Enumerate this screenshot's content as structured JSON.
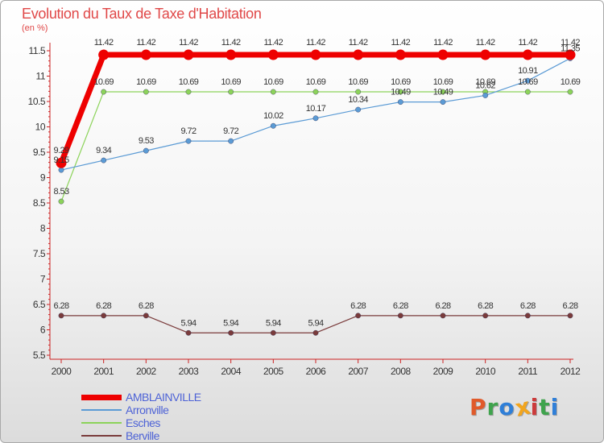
{
  "chart_data": {
    "type": "line",
    "title": "Evolution du Taux de Taxe d'Habitation",
    "subtitle": "(en %)",
    "xlabel": "",
    "ylabel": "",
    "x": [
      "2000",
      "2001",
      "2002",
      "2003",
      "2004",
      "2005",
      "2006",
      "2007",
      "2008",
      "2009",
      "2010",
      "2011",
      "2012"
    ],
    "ylim": [
      5.5,
      11.5
    ],
    "yticks": [
      "5.5",
      "6",
      "6.5",
      "7",
      "7.5",
      "8",
      "8.5",
      "9",
      "9.5",
      "10",
      "10.5",
      "11",
      "11.5"
    ],
    "grid": false,
    "legend_position": "bottom-left",
    "series": [
      {
        "name": "AMBLAINVILLE",
        "color": "#ee0000",
        "values": [
          9.29,
          11.42,
          11.42,
          11.42,
          11.42,
          11.42,
          11.42,
          11.42,
          11.42,
          11.42,
          11.42,
          11.42,
          11.42
        ],
        "labels": [
          "9.29",
          "11.42",
          "11.42",
          "11.42",
          "11.42",
          "11.42",
          "11.42",
          "11.42",
          "11.42",
          "11.42",
          "11.42",
          "11.42",
          "11.42"
        ]
      },
      {
        "name": "Arronville",
        "color": "#5b9bd5",
        "values": [
          9.15,
          9.34,
          9.53,
          9.72,
          9.72,
          10.02,
          10.17,
          10.34,
          10.49,
          10.49,
          10.62,
          10.91,
          11.35
        ],
        "labels": [
          "9.15",
          "9.34",
          "9.53",
          "9.72",
          "9.72",
          "10.02",
          "10.17",
          "10.34",
          "10.49",
          "10.49",
          "10.62",
          "10.91",
          "11.35"
        ]
      },
      {
        "name": "Esches",
        "color": "#8cd35a",
        "values": [
          8.53,
          10.69,
          10.69,
          10.69,
          10.69,
          10.69,
          10.69,
          10.69,
          10.69,
          10.69,
          10.69,
          10.69,
          10.69
        ],
        "labels": [
          "8.53",
          "10.69",
          "10.69",
          "10.69",
          "10.69",
          "10.69",
          "10.69",
          "10.69",
          "10.69",
          "10.69",
          "10.69",
          "10.69",
          "10.69"
        ]
      },
      {
        "name": "Berville",
        "color": "#7a3b3b",
        "values": [
          6.28,
          6.28,
          6.28,
          5.94,
          5.94,
          5.94,
          5.94,
          6.28,
          6.28,
          6.28,
          6.28,
          6.28,
          6.28
        ],
        "labels": [
          "6.28",
          "6.28",
          "6.28",
          "5.94",
          "5.94",
          "5.94",
          "5.94",
          "6.28",
          "6.28",
          "6.28",
          "6.28",
          "6.28",
          "6.28"
        ]
      }
    ]
  },
  "brand": {
    "letters": [
      "P",
      "r",
      "o",
      "x",
      "i",
      "t",
      "i"
    ],
    "colors": [
      "#e05a2a",
      "#3fa34d",
      "#2f7fd8",
      "#f2a51e",
      "#cc3b3b",
      "#3fa34d",
      "#2f7fd8"
    ]
  }
}
